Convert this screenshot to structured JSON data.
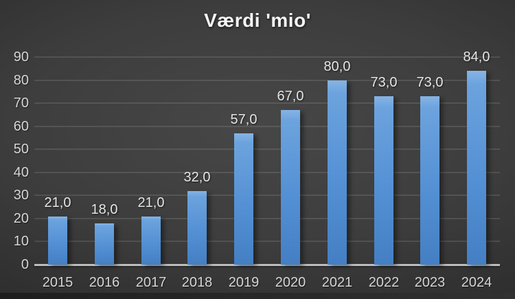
{
  "chart_data": {
    "type": "bar",
    "title": "Værdi 'mio'",
    "categories": [
      "2015",
      "2016",
      "2017",
      "2018",
      "2019",
      "2020",
      "2021",
      "2022",
      "2023",
      "2024"
    ],
    "values": [
      21,
      18,
      21,
      32,
      57,
      67,
      80,
      73,
      73,
      84
    ],
    "value_labels": [
      "21,0",
      "18,0",
      "21,0",
      "32,0",
      "57,0",
      "67,0",
      "80,0",
      "73,0",
      "73,0",
      "84,0"
    ],
    "xlabel": "",
    "ylabel": "",
    "ylim": [
      0,
      90
    ],
    "ytick_step": 10,
    "ytick_labels": [
      "0",
      "10",
      "20",
      "30",
      "40",
      "50",
      "60",
      "70",
      "80",
      "90"
    ],
    "grid": "horizontal",
    "legend": "none",
    "colors": {
      "bar_gradient_top": "#86B4E4",
      "bar_gradient_upper": "#6CA3DE",
      "bar_gradient_mid": "#5490D4",
      "bar_gradient_bottom": "#447FC4",
      "gridline": "rgba(255,255,255,0.11)",
      "axis_line": "#BDBDBD",
      "axis_label_text": "#D6D6D6",
      "data_label_text": "#E6E6E6",
      "title_text": "#F5F5F5",
      "background_center": "#474747",
      "background_edge": "#242424"
    }
  }
}
